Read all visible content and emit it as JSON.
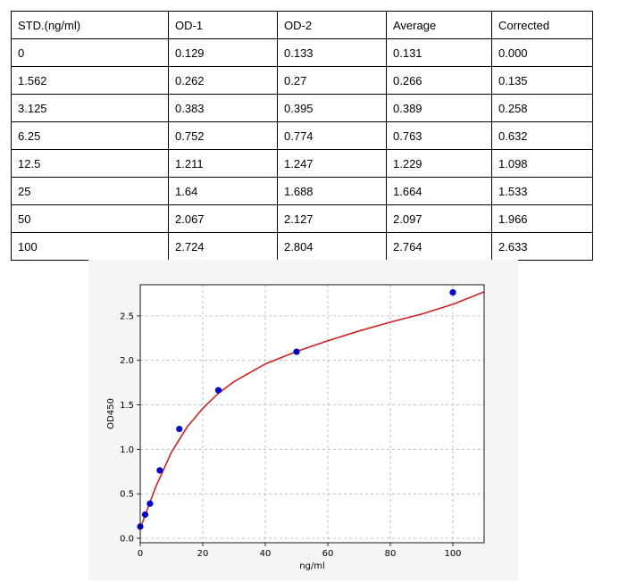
{
  "table": {
    "headers": [
      "STD.(ng/ml)",
      "OD-1",
      "OD-2",
      "Average",
      "Corrected"
    ],
    "rows": [
      [
        "0",
        "0.129",
        "0.133",
        "0.131",
        "0.000"
      ],
      [
        "1.562",
        "0.262",
        "0.27",
        "0.266",
        "0.135"
      ],
      [
        "3.125",
        "0.383",
        "0.395",
        "0.389",
        "0.258"
      ],
      [
        "6.25",
        "0.752",
        "0.774",
        "0.763",
        "0.632"
      ],
      [
        "12.5",
        "1.211",
        "1.247",
        "1.229",
        "1.098"
      ],
      [
        "25",
        "1.64",
        "1.688",
        "1.664",
        "1.533"
      ],
      [
        "50",
        "2.067",
        "2.127",
        "2.097",
        "1.966"
      ],
      [
        "100",
        "2.724",
        "2.804",
        "2.764",
        "2.633"
      ]
    ]
  },
  "chart_data": {
    "type": "scatter",
    "title": "",
    "xlabel": "ng/ml",
    "ylabel": "OD450",
    "xlim": [
      0,
      110
    ],
    "ylim": [
      -0.05,
      2.85
    ],
    "xticks": [
      0,
      20,
      40,
      60,
      80,
      100
    ],
    "yticks": [
      0.0,
      0.5,
      1.0,
      1.5,
      2.0,
      2.5
    ],
    "grid": true,
    "series": [
      {
        "kind": "points",
        "color": "#0000cc",
        "points": [
          [
            0,
            0.131
          ],
          [
            1.562,
            0.266
          ],
          [
            3.125,
            0.389
          ],
          [
            6.25,
            0.763
          ],
          [
            12.5,
            1.229
          ],
          [
            25,
            1.664
          ],
          [
            50,
            2.097
          ],
          [
            100,
            2.764
          ]
        ]
      },
      {
        "kind": "fit-curve",
        "color": "#cc2222",
        "points": [
          [
            0,
            0.11
          ],
          [
            2,
            0.3
          ],
          [
            5,
            0.58
          ],
          [
            10,
            0.97
          ],
          [
            15,
            1.25
          ],
          [
            20,
            1.46
          ],
          [
            25,
            1.63
          ],
          [
            30,
            1.76
          ],
          [
            40,
            1.96
          ],
          [
            50,
            2.1
          ],
          [
            60,
            2.22
          ],
          [
            70,
            2.33
          ],
          [
            80,
            2.43
          ],
          [
            90,
            2.52
          ],
          [
            100,
            2.63
          ],
          [
            110,
            2.77
          ]
        ]
      }
    ]
  }
}
